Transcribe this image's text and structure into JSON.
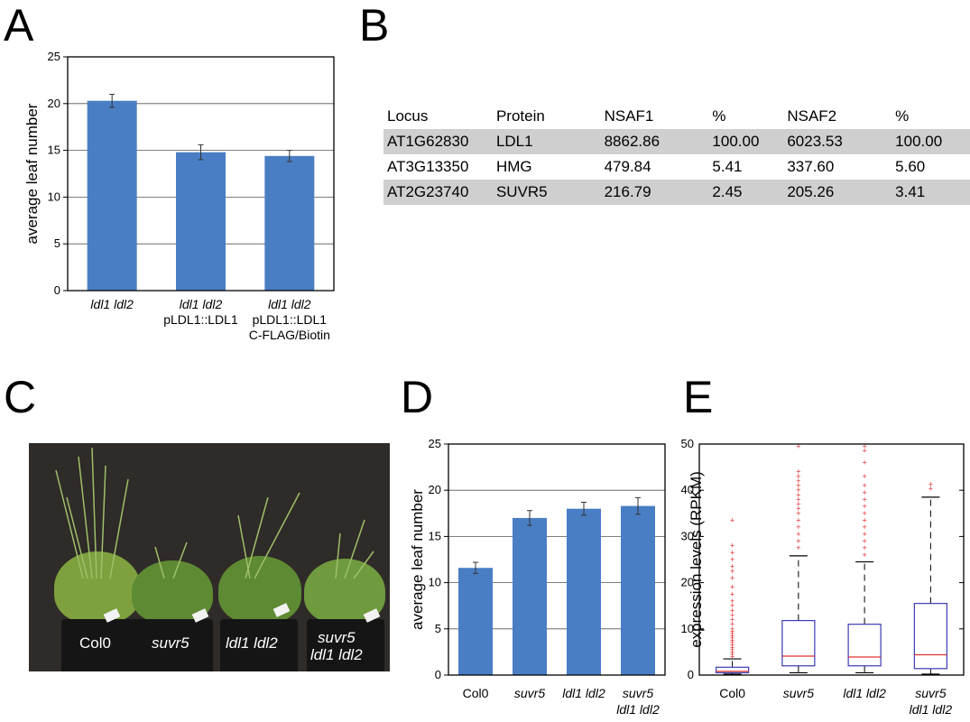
{
  "panels": {
    "A": "A",
    "B": "B",
    "C": "C",
    "D": "D",
    "E": "E"
  },
  "chart_data": [
    {
      "id": "A",
      "type": "bar",
      "ylabel": "average leaf number",
      "ylim": [
        0,
        25
      ],
      "yticks": [
        "0",
        "5",
        "10",
        "15",
        "20",
        "25"
      ],
      "grid": true,
      "categories": [
        {
          "lines": [
            "ldl1 ldl2"
          ],
          "italic": [
            true
          ]
        },
        {
          "lines": [
            "ldl1 ldl2",
            "pLDL1::LDL1"
          ],
          "italic": [
            true,
            false
          ]
        },
        {
          "lines": [
            "ldl1 ldl2",
            "pLDL1::LDL1",
            "C-FLAG/Biotin"
          ],
          "italic": [
            true,
            false,
            false
          ]
        }
      ],
      "values": [
        20.3,
        14.8,
        14.4
      ],
      "errors": [
        0.7,
        0.8,
        0.6
      ],
      "bar_color": "#4a7ec4"
    },
    {
      "id": "D",
      "type": "bar",
      "ylabel": "average leaf number",
      "ylim": [
        0,
        25
      ],
      "yticks": [
        "0",
        "5",
        "10",
        "15",
        "20",
        "25"
      ],
      "grid": true,
      "categories": [
        {
          "lines": [
            "Col0"
          ],
          "italic": [
            false
          ]
        },
        {
          "lines": [
            "suvr5"
          ],
          "italic": [
            true
          ]
        },
        {
          "lines": [
            "ldl1 ldl2"
          ],
          "italic": [
            true
          ]
        },
        {
          "lines": [
            "suvr5",
            "ldl1 ldl2"
          ],
          "italic": [
            true,
            true
          ]
        }
      ],
      "values": [
        11.6,
        17.0,
        18.0,
        18.3
      ],
      "errors": [
        0.6,
        0.8,
        0.7,
        0.9
      ],
      "bar_color": "#4a7ec4"
    },
    {
      "id": "E",
      "type": "box",
      "ylabel": "expression levels (RPKM)",
      "ylim": [
        0,
        50
      ],
      "yticks": [
        "0",
        "10",
        "20",
        "30",
        "40",
        "50"
      ],
      "categories": [
        {
          "lines": [
            "Col0"
          ],
          "italic": [
            false
          ]
        },
        {
          "lines": [
            "suvr5"
          ],
          "italic": [
            true
          ]
        },
        {
          "lines": [
            "ldl1 ldl2"
          ],
          "italic": [
            true
          ]
        },
        {
          "lines": [
            "suvr5",
            "ldl1 ldl2"
          ],
          "italic": [
            true,
            true
          ]
        }
      ],
      "boxes": [
        {
          "whisker_low": 0.2,
          "q1": 0.5,
          "median": 0.8,
          "q3": 1.7,
          "whisker_high": 3.5,
          "outliers": [
            4,
            4.5,
            5,
            5.5,
            6,
            6.5,
            7,
            7.5,
            8,
            8.5,
            9,
            9.5,
            10,
            11,
            12,
            13,
            14,
            15,
            16,
            17.5,
            19,
            21,
            22.5,
            23.5,
            25,
            26.5,
            28,
            33.5
          ]
        },
        {
          "whisker_low": 0.5,
          "q1": 2,
          "median": 4.1,
          "q3": 11.8,
          "whisker_high": 25.8,
          "outliers": [
            27.5,
            29,
            30.5,
            32,
            33.5,
            35,
            36,
            37,
            38,
            39,
            40,
            41,
            42,
            43,
            44,
            49.5
          ]
        },
        {
          "whisker_low": 0.5,
          "q1": 2,
          "median": 3.9,
          "q3": 11,
          "whisker_high": 24.5,
          "outliers": [
            26,
            27.5,
            29,
            30.5,
            32,
            33.5,
            35,
            36.5,
            38,
            39.5,
            41,
            43,
            46,
            48.5,
            49.5
          ]
        },
        {
          "whisker_low": 0.2,
          "q1": 1.4,
          "median": 4.4,
          "q3": 15.5,
          "whisker_high": 38.5,
          "outliers": [
            40.3,
            41.3
          ]
        }
      ],
      "box_color": "#3b3bb3",
      "median_color": "#e03030",
      "outlier_color": "#e03030"
    }
  ],
  "table_B": {
    "headers": [
      "Locus",
      "Protein",
      "NSAF1",
      "%",
      "NSAF2",
      "%"
    ],
    "rows": [
      [
        "AT1G62830",
        "LDL1",
        "8862.86",
        "100.00",
        "6023.53",
        "100.00"
      ],
      [
        "AT3G13350",
        "HMG",
        "479.84",
        "5.41",
        "337.60",
        "5.60"
      ],
      [
        "AT2G23740",
        "SUVR5",
        "216.79",
        "2.45",
        "205.26",
        "3.41"
      ]
    ]
  },
  "photo_C": {
    "labels": [
      {
        "lines": [
          "Col0"
        ],
        "italic": [
          false
        ]
      },
      {
        "lines": [
          "suvr5"
        ],
        "italic": [
          true
        ]
      },
      {
        "lines": [
          "ldl1 ldl2"
        ],
        "italic": [
          true
        ]
      },
      {
        "lines": [
          "suvr5",
          "ldl1 ldl2"
        ],
        "italic": [
          true,
          true
        ]
      }
    ]
  }
}
